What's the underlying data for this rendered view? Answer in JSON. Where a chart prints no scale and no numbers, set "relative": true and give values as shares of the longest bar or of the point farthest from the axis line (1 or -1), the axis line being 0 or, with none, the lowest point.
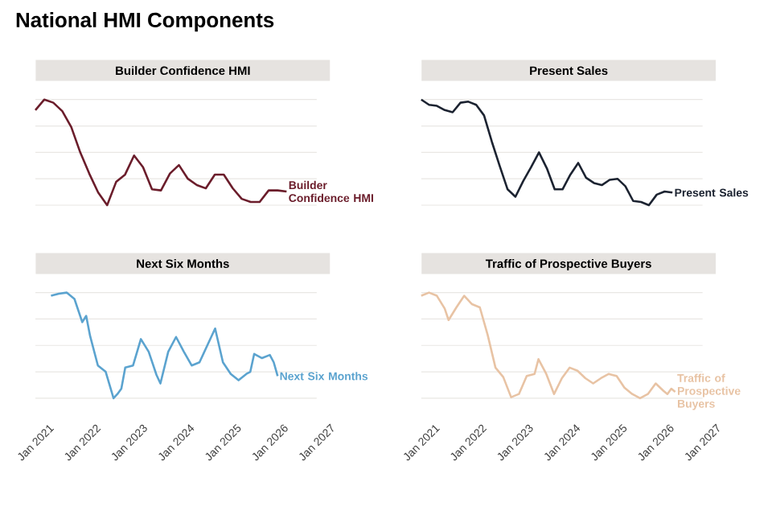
{
  "chart_data": [
    {
      "type": "line",
      "title": "Builder Confidence HMI",
      "annotations": [
        "National HMI Components"
      ],
      "relative": true,
      "grid": "y",
      "tick_labels": false,
      "categories": [
        null,
        null,
        null,
        null,
        null,
        null,
        null,
        null,
        null,
        null,
        null,
        null,
        null,
        null,
        null,
        null,
        null,
        null,
        null,
        null,
        null,
        null,
        null,
        null,
        null,
        null,
        null,
        null,
        null
      ],
      "series": [
        {
          "name": "Builder Confidence HMI",
          "color": "#6b1d2b",
          "values": [
            0.9,
            1.0,
            0.97,
            0.89,
            0.74,
            0.5,
            0.3,
            0.12,
            0,
            0.22,
            0.29,
            0.47,
            0.36,
            0.15,
            0.14,
            0.3,
            0.38,
            0.25,
            0.19,
            0.16,
            0.29,
            0.29,
            0.16,
            0.06,
            0.03,
            0.03,
            0.14,
            0.14,
            0.13
          ]
        }
      ]
    },
    {
      "type": "line",
      "title": "Present Sales",
      "relative": true,
      "grid": "y",
      "tick_labels": false,
      "categories": [
        null,
        null,
        null,
        null,
        null,
        null,
        null,
        null,
        null,
        null,
        null,
        null,
        null,
        null,
        null,
        null,
        null,
        null,
        null,
        null,
        null,
        null,
        null,
        null,
        null,
        null,
        null,
        null,
        null,
        null,
        null,
        null,
        null
      ],
      "series": [
        {
          "name": "Present Sales",
          "color": "#1c2331",
          "values": [
            1.0,
            0.95,
            0.94,
            0.9,
            0.88,
            0.97,
            0.98,
            0.95,
            0.85,
            0.6,
            0.37,
            0.15,
            0.08,
            0.23,
            0.36,
            0.5,
            0.35,
            0.15,
            0.15,
            0.29,
            0.4,
            0.26,
            0.21,
            0.19,
            0.24,
            0.25,
            0.18,
            0.04,
            0.03,
            0,
            0.1,
            0.13,
            0.12
          ]
        }
      ]
    },
    {
      "type": "line",
      "title": "Next Six Months",
      "relative": true,
      "grid": "y",
      "tick_labels": "x",
      "xlim": [
        "2021-01",
        "2027-01"
      ],
      "xticks": [
        {
          "value": "2021-01",
          "label": "Jan 2021"
        },
        {
          "value": "2022-01",
          "label": "Jan 2022"
        },
        {
          "value": "2023-01",
          "label": "Jan 2023"
        },
        {
          "value": "2024-01",
          "label": "Jan 2024"
        },
        {
          "value": "2025-01",
          "label": "Jan 2025"
        },
        {
          "value": "2026-01",
          "label": "Jan 2026"
        },
        {
          "value": "2027-01",
          "label": "Jan 2027"
        }
      ],
      "x": [
        "2021-05",
        "2021-07",
        "2021-09",
        "2021-11",
        "2022-01",
        "2022-02",
        "2022-03",
        "2022-05",
        "2022-07",
        "2022-09",
        "2022-10",
        "2022-11",
        "2022-12",
        "2023-02",
        "2023-04",
        "2023-06",
        "2023-08",
        "2023-09",
        "2023-11",
        "2024-01",
        "2024-03",
        "2024-05",
        "2024-07",
        "2024-09",
        "2024-11",
        "2025-01",
        "2025-03",
        "2025-05",
        "2025-07",
        "2025-08",
        "2025-09",
        "2025-11",
        "2026-01",
        "2026-02",
        "2026-03"
      ],
      "series": [
        {
          "name": "Next Six Months",
          "color": "#5ba3cf",
          "values": [
            0.97,
            0.99,
            1.0,
            0.94,
            0.72,
            0.78,
            0.59,
            0.31,
            0.25,
            0,
            0.04,
            0.09,
            0.29,
            0.31,
            0.56,
            0.44,
            0.22,
            0.14,
            0.44,
            0.58,
            0.44,
            0.31,
            0.34,
            0.5,
            0.66,
            0.34,
            0.23,
            0.17,
            0.23,
            0.25,
            0.42,
            0.38,
            0.41,
            0.34,
            0.21
          ]
        }
      ]
    },
    {
      "type": "line",
      "title": "Traffic of Prospective Buyers",
      "relative": true,
      "grid": "y",
      "tick_labels": "x",
      "xlim": [
        "2021-01",
        "2027-01"
      ],
      "xticks": [
        {
          "value": "2021-01",
          "label": "Jan 2021"
        },
        {
          "value": "2022-01",
          "label": "Jan 2022"
        },
        {
          "value": "2023-01",
          "label": "Jan 2023"
        },
        {
          "value": "2024-01",
          "label": "Jan 2024"
        },
        {
          "value": "2025-01",
          "label": "Jan 2025"
        },
        {
          "value": "2026-01",
          "label": "Jan 2026"
        },
        {
          "value": "2027-01",
          "label": "Jan 2027"
        }
      ],
      "x": [
        "2021-01",
        "2021-03",
        "2021-05",
        "2021-07",
        "2021-08",
        "2021-10",
        "2021-12",
        "2022-02",
        "2022-04",
        "2022-06",
        "2022-08",
        "2022-10",
        "2022-12",
        "2023-02",
        "2023-04",
        "2023-06",
        "2023-07",
        "2023-09",
        "2023-11",
        "2024-01",
        "2024-03",
        "2024-05",
        "2024-07",
        "2024-09",
        "2024-11",
        "2025-01",
        "2025-03",
        "2025-05",
        "2025-07",
        "2025-09",
        "2025-11",
        "2026-01",
        "2026-03",
        "2026-04",
        "2026-05",
        "2026-06"
      ],
      "series": [
        {
          "name": "Traffic of Prospective Buyers",
          "color": "#e8c3a4",
          "values": [
            0.97,
            1.0,
            0.97,
            0.85,
            0.74,
            0.86,
            0.97,
            0.89,
            0.86,
            0.6,
            0.29,
            0.2,
            0.01,
            0.04,
            0.21,
            0.23,
            0.37,
            0.23,
            0.04,
            0.19,
            0.29,
            0.26,
            0.19,
            0.14,
            0.19,
            0.23,
            0.21,
            0.1,
            0.04,
            0,
            0.04,
            0.14,
            0.07,
            0.04,
            0.09,
            0.06
          ]
        }
      ]
    }
  ]
}
